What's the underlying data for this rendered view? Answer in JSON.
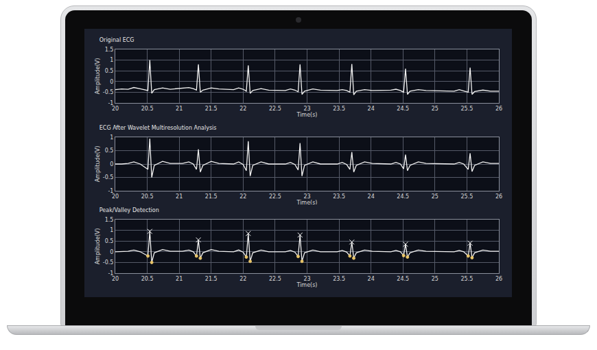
{
  "chart_data": [
    {
      "type": "line",
      "title": "Original ECG",
      "x_label": "Time(s)",
      "y_label": "Amplitude(V)",
      "xlim": [
        20,
        26
      ],
      "xticks": [
        20,
        20.5,
        21,
        21.5,
        22,
        22.5,
        23,
        23.5,
        24,
        24.5,
        25,
        25.5,
        26
      ],
      "ylim": [
        -1,
        1.5
      ],
      "yticks": [
        -1,
        -0.5,
        0,
        0.5,
        1,
        1.5
      ],
      "grid": true,
      "x": [
        20.0,
        20.1,
        20.2,
        20.29,
        20.39,
        20.51,
        20.54,
        20.57,
        20.61,
        20.74,
        20.86,
        21.05,
        21.15,
        21.22,
        21.27,
        21.3,
        21.33,
        21.37,
        21.5,
        21.62,
        21.85,
        21.93,
        22.0,
        22.05,
        22.08,
        22.11,
        22.15,
        22.28,
        22.4,
        22.66,
        22.74,
        22.81,
        22.86,
        22.89,
        22.92,
        22.96,
        23.09,
        23.21,
        23.47,
        23.55,
        23.62,
        23.67,
        23.7,
        23.73,
        23.77,
        23.9,
        24.02,
        24.31,
        24.39,
        24.46,
        24.51,
        24.54,
        24.57,
        24.61,
        24.74,
        24.86,
        25.3,
        25.38,
        25.45,
        25.52,
        25.55,
        25.58,
        25.62,
        25.75,
        25.87,
        26.0
      ],
      "series": [
        {
          "type": "line",
          "color": "#f2f2f2",
          "values": [
            -0.38,
            -0.35,
            -0.36,
            -0.28,
            -0.34,
            -0.42,
            1.0,
            -0.55,
            -0.38,
            -0.3,
            -0.36,
            -0.32,
            -0.28,
            -0.33,
            -0.4,
            0.8,
            -0.5,
            -0.4,
            -0.3,
            -0.35,
            -0.38,
            -0.3,
            -0.36,
            -0.45,
            0.75,
            -0.55,
            -0.42,
            -0.33,
            -0.4,
            -0.42,
            -0.35,
            -0.4,
            -0.48,
            0.8,
            -0.6,
            -0.45,
            -0.35,
            -0.4,
            -0.42,
            -0.38,
            -0.42,
            -0.5,
            0.82,
            -0.62,
            -0.45,
            -0.38,
            -0.42,
            -0.4,
            -0.36,
            -0.42,
            -0.5,
            0.6,
            -0.6,
            -0.45,
            -0.38,
            -0.42,
            -0.45,
            -0.38,
            -0.43,
            -0.5,
            0.65,
            -0.6,
            -0.47,
            -0.4,
            -0.45,
            -0.45
          ]
        }
      ]
    },
    {
      "type": "line",
      "title": "ECG After Wavelet Multiresolution Analysis",
      "x_label": "Time(s)",
      "y_label": "Amplitude(V)",
      "xlim": [
        20,
        26
      ],
      "xticks": [
        20,
        20.5,
        21,
        21.5,
        22,
        22.5,
        23,
        23.5,
        24,
        24.5,
        25,
        25.5,
        26
      ],
      "ylim": [
        -1,
        1
      ],
      "yticks": [
        -1,
        -0.5,
        0,
        0.5,
        1
      ],
      "grid": true,
      "x": [
        20.0,
        20.1,
        20.2,
        20.29,
        20.39,
        20.51,
        20.54,
        20.57,
        20.61,
        20.74,
        20.86,
        21.05,
        21.15,
        21.22,
        21.27,
        21.3,
        21.33,
        21.37,
        21.5,
        21.62,
        21.85,
        21.93,
        22.0,
        22.05,
        22.08,
        22.11,
        22.15,
        22.28,
        22.4,
        22.66,
        22.74,
        22.81,
        22.86,
        22.89,
        22.92,
        22.96,
        23.09,
        23.21,
        23.47,
        23.55,
        23.62,
        23.67,
        23.7,
        23.73,
        23.77,
        23.9,
        24.02,
        24.31,
        24.39,
        24.46,
        24.51,
        24.54,
        24.57,
        24.61,
        24.74,
        24.86,
        25.3,
        25.38,
        25.45,
        25.52,
        25.55,
        25.58,
        25.62,
        25.75,
        25.87,
        26.0
      ],
      "series": [
        {
          "type": "line",
          "color": "#f2f2f2",
          "values": [
            0,
            0,
            0.02,
            0.08,
            0,
            -0.2,
            0.95,
            -0.5,
            -0.05,
            0.1,
            0.02,
            0.02,
            0.08,
            0,
            -0.2,
            0.55,
            -0.3,
            -0.05,
            0.1,
            0.02,
            0,
            0.08,
            -0.02,
            -0.25,
            0.85,
            -0.45,
            -0.05,
            0.08,
            0,
            0,
            0.06,
            -0.02,
            -0.22,
            0.78,
            -0.45,
            -0.05,
            0.08,
            0,
            0,
            0.06,
            -0.02,
            -0.2,
            0.45,
            -0.3,
            -0.05,
            0.08,
            0.02,
            0,
            0.06,
            0,
            -0.18,
            0.35,
            -0.25,
            -0.05,
            0.08,
            0.02,
            0,
            0.06,
            0,
            -0.2,
            0.4,
            -0.28,
            -0.05,
            0.08,
            0.02,
            0.02
          ]
        }
      ]
    },
    {
      "type": "line",
      "title": "Peak/Valley Detection",
      "x_label": "Time(s)",
      "y_label": "Amplitude(V)",
      "xlim": [
        20,
        26
      ],
      "xticks": [
        20,
        20.5,
        21,
        21.5,
        22,
        22.5,
        23,
        23.5,
        24,
        24.5,
        25,
        25.5,
        26
      ],
      "ylim": [
        -1,
        1.5
      ],
      "yticks": [
        -1,
        -0.5,
        0,
        0.5,
        1,
        1.5
      ],
      "grid": true,
      "x": [
        20.0,
        20.1,
        20.2,
        20.29,
        20.39,
        20.51,
        20.54,
        20.57,
        20.61,
        20.74,
        20.86,
        21.05,
        21.15,
        21.22,
        21.27,
        21.3,
        21.33,
        21.37,
        21.5,
        21.62,
        21.85,
        21.93,
        22.0,
        22.05,
        22.08,
        22.11,
        22.15,
        22.28,
        22.4,
        22.66,
        22.74,
        22.81,
        22.86,
        22.89,
        22.92,
        22.96,
        23.09,
        23.21,
        23.47,
        23.55,
        23.62,
        23.67,
        23.7,
        23.73,
        23.77,
        23.9,
        24.02,
        24.31,
        24.39,
        24.46,
        24.51,
        24.54,
        24.57,
        24.61,
        24.74,
        24.86,
        25.3,
        25.38,
        25.45,
        25.52,
        25.55,
        25.58,
        25.62,
        25.75,
        25.87,
        26.0
      ],
      "series": [
        {
          "type": "line",
          "color": "#f2f2f2",
          "values": [
            0,
            0,
            0.02,
            0.08,
            0,
            -0.2,
            0.95,
            -0.5,
            -0.05,
            0.1,
            0.02,
            0.02,
            0.08,
            0,
            -0.2,
            0.55,
            -0.3,
            -0.05,
            0.1,
            0.02,
            0,
            0.08,
            -0.02,
            -0.25,
            0.85,
            -0.45,
            -0.05,
            0.08,
            0,
            0,
            0.06,
            -0.02,
            -0.22,
            0.78,
            -0.45,
            -0.05,
            0.08,
            0,
            0,
            0.06,
            -0.02,
            -0.2,
            0.45,
            -0.3,
            -0.05,
            0.08,
            0.02,
            0,
            0.06,
            0,
            -0.18,
            0.35,
            -0.25,
            -0.05,
            0.08,
            0.02,
            0,
            0.06,
            0,
            -0.2,
            0.4,
            -0.28,
            -0.05,
            0.08,
            0.02,
            0.02
          ]
        },
        {
          "type": "scatter",
          "marker": "x",
          "color": "#f5f5f5",
          "x": [
            20.54,
            21.3,
            22.08,
            22.89,
            23.7,
            24.54,
            25.55
          ],
          "values": [
            0.95,
            0.55,
            0.85,
            0.78,
            0.45,
            0.35,
            0.4
          ]
        },
        {
          "type": "scatter",
          "marker": "circle",
          "color": "#e8c468",
          "x": [
            20.51,
            20.57,
            21.27,
            21.33,
            22.05,
            22.11,
            22.86,
            22.92,
            23.67,
            23.73,
            24.51,
            24.57,
            25.52,
            25.58
          ],
          "values": [
            -0.2,
            -0.5,
            -0.2,
            -0.3,
            -0.25,
            -0.45,
            -0.22,
            -0.45,
            -0.2,
            -0.3,
            -0.18,
            -0.25,
            -0.2,
            -0.28
          ]
        }
      ]
    }
  ]
}
